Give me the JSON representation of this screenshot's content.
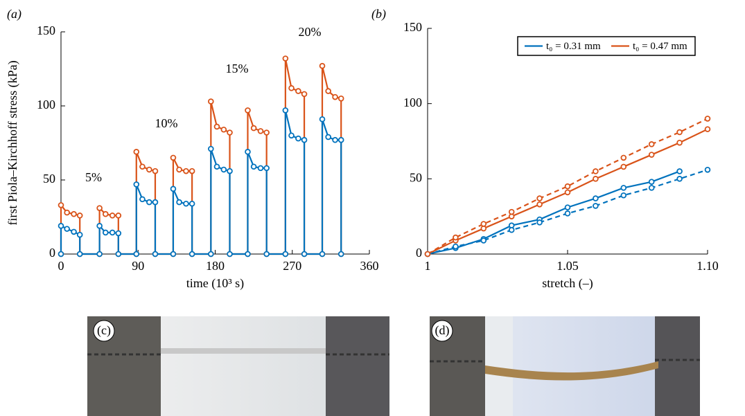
{
  "chart_data": [
    {
      "type": "line",
      "panel_label": "(a)",
      "xlabel": "time (10³ s)",
      "ylabel": "first Piola–Kirchhoff stress (kPa)",
      "xlim": [
        0,
        360
      ],
      "xticks": [
        0,
        90,
        180,
        270,
        360
      ],
      "ylim": [
        0,
        150
      ],
      "yticks": [
        0,
        50,
        100,
        150
      ],
      "annotations": [
        "5%",
        "10%",
        "15%",
        "20%"
      ],
      "x": [
        0,
        0,
        7,
        15,
        22,
        22,
        45,
        45,
        52,
        60,
        67,
        67,
        88,
        88,
        95,
        103,
        110,
        110,
        131,
        131,
        138,
        146,
        153,
        153,
        175,
        175,
        182,
        190,
        197,
        197,
        218,
        218,
        225,
        233,
        240,
        240,
        262,
        262,
        269,
        277,
        284,
        284,
        305,
        305,
        312,
        320,
        327,
        327
      ],
      "series": [
        {
          "color": "#D95319",
          "linestyle": "solid",
          "values": [
            0,
            33,
            28,
            27,
            26,
            0,
            0,
            31,
            27,
            26,
            26,
            0,
            0,
            69,
            59,
            57,
            56,
            0,
            0,
            65,
            57,
            56,
            56,
            0,
            0,
            103,
            86,
            84,
            82,
            0,
            0,
            97,
            85,
            83,
            82,
            0,
            0,
            132,
            112,
            110,
            108,
            0,
            0,
            127,
            110,
            106,
            105,
            0
          ]
        },
        {
          "color": "#0072BD",
          "linestyle": "solid",
          "values": [
            0,
            19,
            17,
            15,
            13,
            0,
            0,
            19,
            14.5,
            14.5,
            14,
            0,
            0,
            47,
            37,
            35,
            35,
            0,
            0,
            44,
            35,
            34,
            34,
            0,
            0,
            71,
            59,
            57,
            56,
            0,
            0,
            69,
            59,
            58,
            58,
            0,
            0,
            97,
            80,
            78,
            77,
            0,
            0,
            91,
            79,
            77,
            77,
            0
          ]
        }
      ]
    },
    {
      "type": "line",
      "panel_label": "(b)",
      "xlabel": "stretch (–)",
      "xlim": [
        1,
        1.1
      ],
      "xticks": [
        1,
        1.05,
        {
          "value": 1.1,
          "label": "1.10"
        }
      ],
      "ylim": [
        0,
        150
      ],
      "yticks": [
        0,
        50,
        100,
        150
      ],
      "legend": "upper right",
      "x": [
        1,
        1.01,
        1.02,
        1.03,
        1.04,
        1.05,
        1.06,
        1.07,
        1.08,
        1.09,
        1.1
      ],
      "series": [
        {
          "name": "t₀ = 0.31 mm",
          "color": "#0072BD",
          "linestyle": "solid",
          "values": [
            0,
            4,
            10,
            19,
            23,
            31,
            37,
            44,
            48,
            55,
            null
          ]
        },
        {
          "name": "t₀ = 0.47 mm",
          "color": "#D95319",
          "linestyle": "solid",
          "values": [
            0,
            9,
            17,
            25,
            33,
            41,
            50,
            58,
            66,
            74,
            83
          ]
        },
        {
          "color": "#0072BD",
          "linestyle": "dashed",
          "values": [
            0,
            5,
            9,
            16,
            21,
            27,
            32,
            39,
            44,
            50,
            56
          ]
        },
        {
          "color": "#D95319",
          "linestyle": "dashed",
          "values": [
            0,
            11,
            20,
            28,
            37,
            45,
            55,
            64,
            73,
            81,
            90
          ]
        }
      ]
    }
  ],
  "photos": [
    {
      "label": "(c)"
    },
    {
      "label": "(d)"
    }
  ]
}
